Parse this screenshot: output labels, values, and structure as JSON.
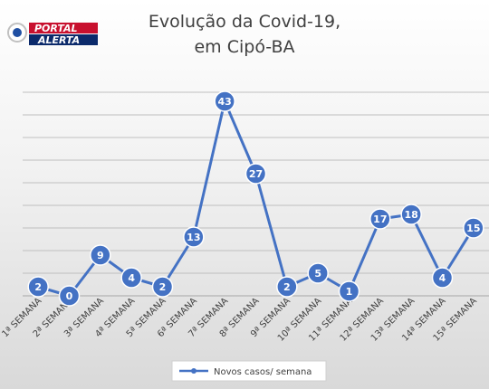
{
  "logo": {
    "line1": "PORTAL",
    "line2": "ALERTA",
    "icon": "eye-badge-icon",
    "colors": {
      "primary": "#c8102e",
      "secondary": "#0b2a6b",
      "eye": "#1f4fa3"
    }
  },
  "chart_data": {
    "type": "line",
    "title_lines": [
      "Evolução da Covid-19,",
      "em Cipó-BA"
    ],
    "title": "Evolução da Covid-19, em Cipó-BA",
    "xlabel": "",
    "ylabel": "",
    "categories": [
      "1ª SEMANA",
      "2ª SEMANA",
      "3ª SEMANA",
      "4ª SEMANA",
      "5ª SEMANA",
      "6ª SEMANA",
      "7ª SEMANA",
      "8ª SEMANA",
      "9ª SEMANA",
      "10ª SEMANA",
      "11ª SEMANA",
      "12ª SEMANA",
      "13ª SEMANA",
      "14ª SEMANA",
      "15ª SEMANA"
    ],
    "series": [
      {
        "name": "Novos casos/ semana",
        "values": [
          2,
          0,
          9,
          4,
          2,
          13,
          43,
          27,
          2,
          5,
          1,
          17,
          18,
          4,
          15
        ]
      }
    ],
    "ylim": [
      0,
      45
    ],
    "ytick_step": 5,
    "ytick_labels_visible": false,
    "grid": true,
    "legend_position": "bottom",
    "colors": {
      "series": "#4472c4",
      "marker": "#4472c4",
      "grid": "#bfbfbf"
    }
  }
}
